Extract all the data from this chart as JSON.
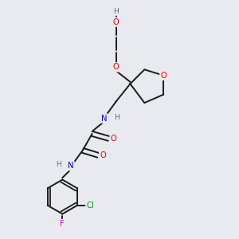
{
  "bg_color": "#e8eaf0",
  "bond_color": "#1a1a1a",
  "atom_colors": {
    "O": "#e00000",
    "N": "#0000e0",
    "Cl": "#009900",
    "F": "#cc00cc",
    "H": "#607080",
    "C": "#1a1a1a"
  },
  "lw": 1.4,
  "fs": 7.2
}
